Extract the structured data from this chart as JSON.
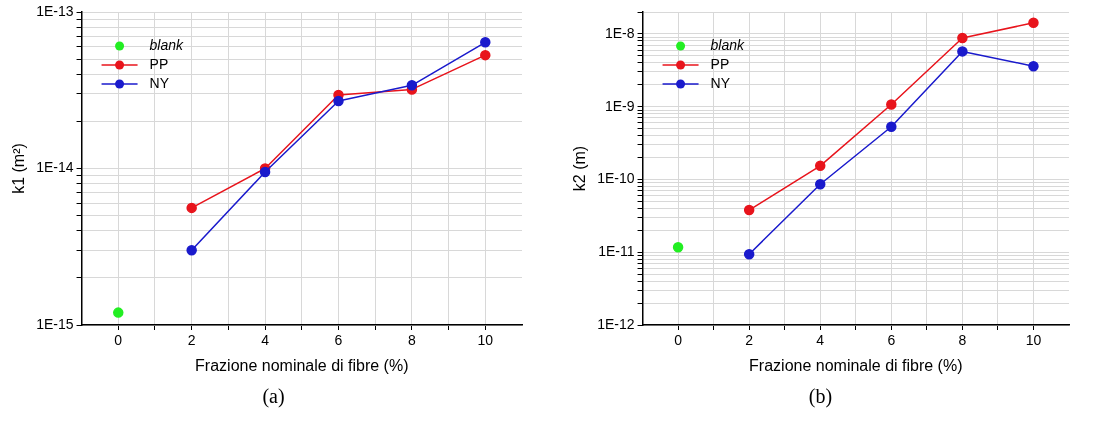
{
  "chart_data": [
    {
      "type": "line",
      "xlabel": "Frazione nominale di fibre (%)",
      "ylabel": "k1 (m²)",
      "log": "y",
      "grid": true,
      "legend": "top left",
      "marker": "circle",
      "line_style": "solid",
      "xlim": [
        -1,
        11
      ],
      "xticks": [
        0,
        {
          "value": 1,
          "label": null
        },
        2,
        {
          "value": 3,
          "label": null
        },
        4,
        {
          "value": 5,
          "label": null
        },
        6,
        {
          "value": 7,
          "label": null
        },
        8,
        {
          "value": 9,
          "label": null
        },
        10
      ],
      "ylim": [
        1e-15,
        1e-13
      ],
      "yticks": [
        {
          "value": 1e-15,
          "label": "1E-15"
        },
        {
          "value": 2e-15,
          "label": null
        },
        {
          "value": 3e-15,
          "label": null
        },
        {
          "value": 4e-15,
          "label": null
        },
        {
          "value": 5e-15,
          "label": null
        },
        {
          "value": 6e-15,
          "label": null
        },
        {
          "value": 7e-15,
          "label": null
        },
        {
          "value": 8e-15,
          "label": null
        },
        {
          "value": 9e-15,
          "label": null
        },
        {
          "value": 1e-14,
          "label": "1E-14"
        },
        {
          "value": 2e-14,
          "label": null
        },
        {
          "value": 3e-14,
          "label": null
        },
        {
          "value": 4e-14,
          "label": null
        },
        {
          "value": 5e-14,
          "label": null
        },
        {
          "value": 6e-14,
          "label": null
        },
        {
          "value": 7e-14,
          "label": null
        },
        {
          "value": 8e-14,
          "label": null
        },
        {
          "value": 9e-14,
          "label": null
        },
        {
          "value": 1e-13,
          "label": "1E-13"
        }
      ],
      "series": [
        {
          "name": "blank",
          "type": "scatter",
          "color": "#22ee22",
          "x": [
            0
          ],
          "values": [
            1.2e-15
          ]
        },
        {
          "name": "PP",
          "color": "#e8141c",
          "x": [
            2,
            4,
            6,
            8,
            10
          ],
          "values": [
            5.6e-15,
            1e-14,
            2.95e-14,
            3.2e-14,
            5.3e-14
          ]
        },
        {
          "name": "NY",
          "color": "#1a1acc",
          "x": [
            2,
            4,
            6,
            8,
            10
          ],
          "values": [
            3e-15,
            9.5e-15,
            2.7e-14,
            3.4e-14,
            6.4e-14
          ]
        }
      ],
      "annotations": [
        "(a)"
      ]
    },
    {
      "type": "line",
      "xlabel": "Frazione nominale di fibre (%)",
      "ylabel": "k2 (m)",
      "log": "y",
      "grid": true,
      "legend": "top left",
      "marker": "circle",
      "line_style": "solid",
      "xlim": [
        -1,
        11
      ],
      "xticks": [
        0,
        {
          "value": 1,
          "label": null
        },
        2,
        {
          "value": 3,
          "label": null
        },
        4,
        {
          "value": 5,
          "label": null
        },
        6,
        {
          "value": 7,
          "label": null
        },
        8,
        {
          "value": 9,
          "label": null
        },
        10
      ],
      "ylim": [
        1e-12,
        2e-08
      ],
      "yticks": [
        {
          "value": 1e-12,
          "label": "1E-12"
        },
        {
          "value": 2e-12,
          "label": null
        },
        {
          "value": 3e-12,
          "label": null
        },
        {
          "value": 4e-12,
          "label": null
        },
        {
          "value": 5e-12,
          "label": null
        },
        {
          "value": 6e-12,
          "label": null
        },
        {
          "value": 7e-12,
          "label": null
        },
        {
          "value": 8e-12,
          "label": null
        },
        {
          "value": 9e-12,
          "label": null
        },
        {
          "value": 1e-11,
          "label": "1E-11"
        },
        {
          "value": 2e-11,
          "label": null
        },
        {
          "value": 3e-11,
          "label": null
        },
        {
          "value": 4e-11,
          "label": null
        },
        {
          "value": 5e-11,
          "label": null
        },
        {
          "value": 6e-11,
          "label": null
        },
        {
          "value": 7e-11,
          "label": null
        },
        {
          "value": 8e-11,
          "label": null
        },
        {
          "value": 9e-11,
          "label": null
        },
        {
          "value": 1e-10,
          "label": "1E-10"
        },
        {
          "value": 2e-10,
          "label": null
        },
        {
          "value": 3e-10,
          "label": null
        },
        {
          "value": 4e-10,
          "label": null
        },
        {
          "value": 5e-10,
          "label": null
        },
        {
          "value": 6e-10,
          "label": null
        },
        {
          "value": 7e-10,
          "label": null
        },
        {
          "value": 8e-10,
          "label": null
        },
        {
          "value": 9e-10,
          "label": null
        },
        {
          "value": 1e-09,
          "label": "1E-9"
        },
        {
          "value": 2e-09,
          "label": null
        },
        {
          "value": 3e-09,
          "label": null
        },
        {
          "value": 4e-09,
          "label": null
        },
        {
          "value": 5e-09,
          "label": null
        },
        {
          "value": 6e-09,
          "label": null
        },
        {
          "value": 7e-09,
          "label": null
        },
        {
          "value": 8e-09,
          "label": null
        },
        {
          "value": 9e-09,
          "label": null
        },
        {
          "value": 1e-08,
          "label": "1E-8"
        },
        {
          "value": 2e-08,
          "label": null
        }
      ],
      "series": [
        {
          "name": "blank",
          "type": "scatter",
          "color": "#22ee22",
          "x": [
            0
          ],
          "values": [
            1.17e-11
          ]
        },
        {
          "name": "PP",
          "color": "#e8141c",
          "x": [
            2,
            4,
            6,
            8,
            10
          ],
          "values": [
            3.8e-11,
            1.54e-10,
            1.07e-09,
            8.8e-09,
            1.42e-08
          ]
        },
        {
          "name": "NY",
          "color": "#1a1acc",
          "x": [
            2,
            4,
            6,
            8,
            10
          ],
          "values": [
            9.4e-12,
            8.6e-11,
            5.3e-10,
            5.75e-09,
            3.6e-09
          ]
        }
      ],
      "annotations": [
        "(b)"
      ]
    }
  ]
}
